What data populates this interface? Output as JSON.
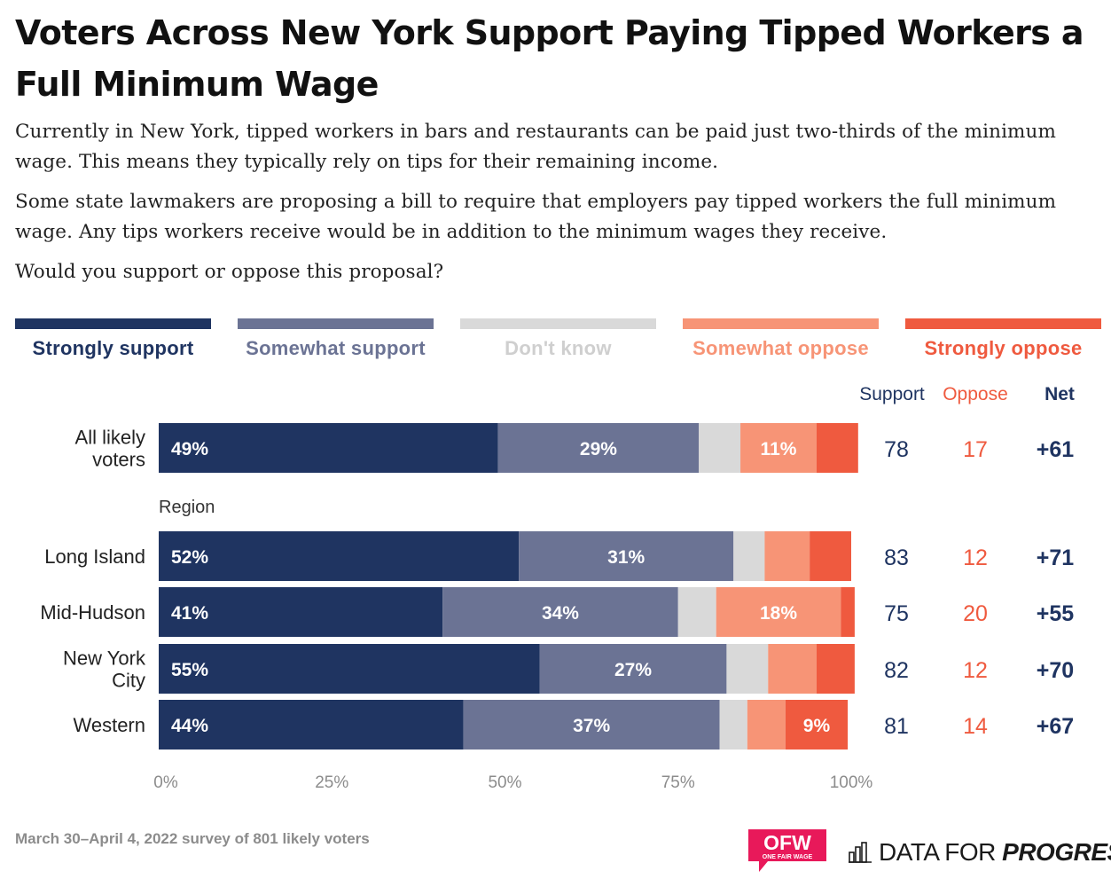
{
  "title": "Voters Across New York Support Paying Tipped Workers a Full Minimum Wage",
  "paragraphs": [
    "Currently in New York, tipped workers in bars and restaurants can be paid just two-thirds of the minimum wage. This means they typically rely on tips for their remaining income.",
    "Some state lawmakers are proposing a bill to require that employers pay tipped workers the full minimum wage. Any tips workers receive would be in addition to the minimum wages they receive.",
    "Would you support or oppose this proposal?"
  ],
  "columns": {
    "support": "Support",
    "oppose": "Oppose",
    "net": "Net"
  },
  "footer": "March 30–April 4, 2022 survey of 801 likely voters",
  "logos": {
    "ofw": "OFW",
    "ofw_sub": "ONE FAIR WAGE",
    "dfp_plain": "DATA FOR",
    "dfp_bold": "PROGRESS"
  },
  "colors": {
    "strongly_support": "#1f3461",
    "somewhat_support": "#6b7394",
    "dont_know": "#d9d9d9",
    "somewhat_oppose": "#f79476",
    "strongly_oppose": "#ef5a3f",
    "ofw_pink": "#e8195a",
    "axis_text": "#8c8c8c"
  },
  "chart_data": {
    "type": "bar",
    "orientation": "horizontal",
    "stacked": true,
    "xlim": [
      0,
      100
    ],
    "x_ticks": [
      "0%",
      "25%",
      "50%",
      "75%",
      "100%"
    ],
    "legend_position": "top",
    "series_names": [
      "Strongly support",
      "Somewhat support",
      "Don't know",
      "Somewhat oppose",
      "Strongly oppose"
    ],
    "groups": [
      {
        "label": "",
        "rows": [
          {
            "label": [
              "All likely",
              "voters"
            ],
            "values": [
              49,
              29,
              6,
              11,
              6
            ],
            "shown": [
              "49%",
              "29%",
              "",
              "11%",
              ""
            ],
            "support": "78",
            "oppose": "17",
            "net": "+61"
          }
        ]
      },
      {
        "label": "Region",
        "rows": [
          {
            "label": [
              "Long Island"
            ],
            "values": [
              52,
              31,
              4.5,
              6.5,
              6
            ],
            "shown": [
              "52%",
              "31%",
              "",
              "",
              ""
            ],
            "support": "83",
            "oppose": "12",
            "net": "+71"
          },
          {
            "label": [
              "Mid-Hudson"
            ],
            "values": [
              41,
              34,
              5.5,
              18,
              2
            ],
            "shown": [
              "41%",
              "34%",
              "",
              "18%",
              ""
            ],
            "support": "75",
            "oppose": "20",
            "net": "+55"
          },
          {
            "label": [
              "New York",
              "City"
            ],
            "values": [
              55,
              27,
              6,
              7,
              5.5
            ],
            "shown": [
              "55%",
              "27%",
              "",
              "",
              ""
            ],
            "support": "82",
            "oppose": "12",
            "net": "+70"
          },
          {
            "label": [
              "Western"
            ],
            "values": [
              44,
              37,
              4,
              5.5,
              9
            ],
            "shown": [
              "44%",
              "37%",
              "",
              "",
              "9%"
            ],
            "support": "81",
            "oppose": "14",
            "net": "+67"
          }
        ]
      }
    ]
  }
}
